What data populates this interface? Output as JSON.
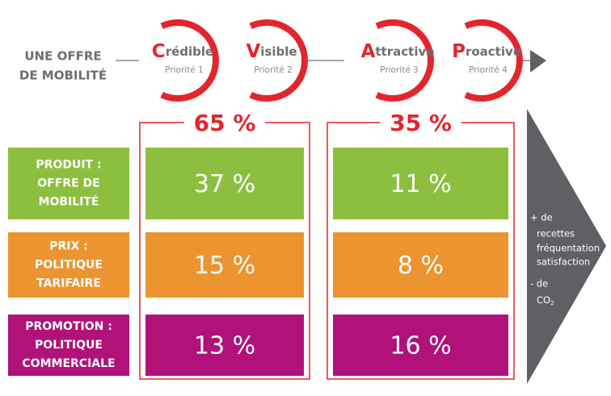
{
  "header": {
    "lines": [
      "UNE OFFRE",
      "DE MOBILITÉ"
    ]
  },
  "steps": [
    {
      "initial": "C",
      "rest": "rédible",
      "priority": "Priorité 1"
    },
    {
      "initial": "V",
      "rest": "isible",
      "priority": "Priorité 2"
    },
    {
      "initial": "A",
      "rest": "ttractive",
      "priority": "Priorité 3"
    },
    {
      "initial": "P",
      "rest": "roactive",
      "priority": "Priorité 4"
    }
  ],
  "rows": [
    {
      "lines": [
        "PRODUIT :",
        "OFFRE DE",
        "MOBILITÉ"
      ],
      "color": "#8cbf3f"
    },
    {
      "lines": [
        "PRIX :",
        "POLITIQUE",
        "TARIFAIRE"
      ],
      "color": "#ec9430"
    },
    {
      "lines": [
        "PROMOTION :",
        "POLITIQUE",
        "COMMERCIALE"
      ],
      "color": "#b0127a"
    }
  ],
  "columns": [
    {
      "total": "65 %",
      "cells": [
        "37 %",
        "15 %",
        "13 %"
      ]
    },
    {
      "total": "35 %",
      "cells": [
        "11 %",
        "8 %",
        "16 %"
      ]
    }
  ],
  "outcomes": {
    "lines": [
      "+ de",
      "recettes",
      "fréquentation",
      "satisfaction",
      "- de"
    ],
    "co2": {
      "base": "CO",
      "sub": "2"
    }
  }
}
